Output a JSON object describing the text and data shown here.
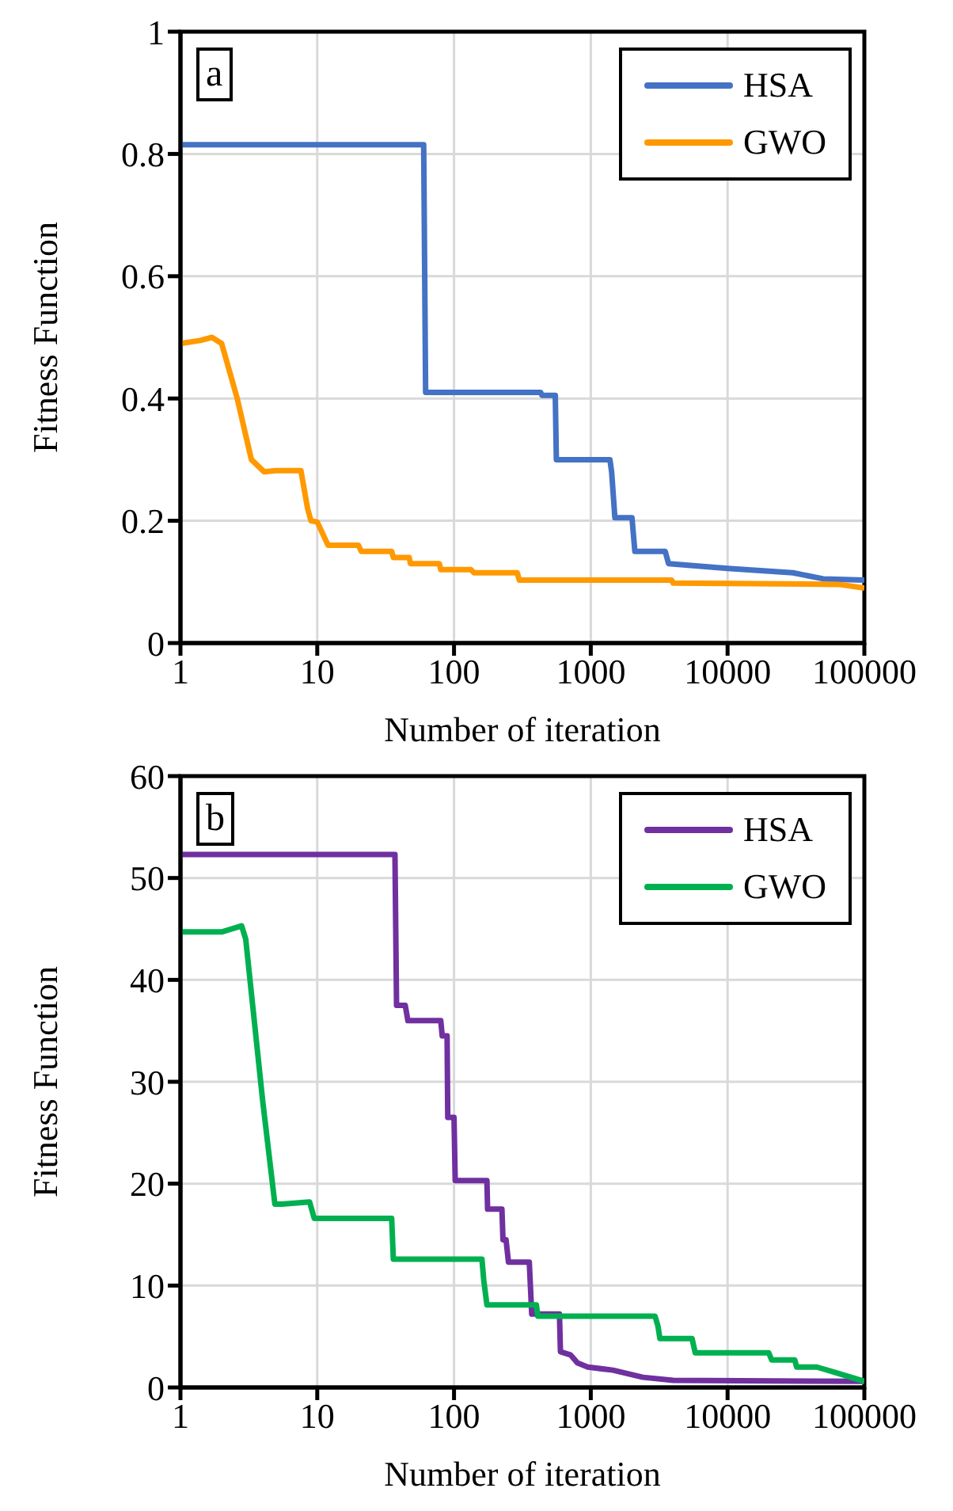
{
  "chart_data": [
    {
      "type": "line",
      "xlabel": "Number of iteration",
      "ylabel": "Fitness Function",
      "annotations": [
        "a"
      ],
      "log": "x",
      "grid": true,
      "legend": "top right",
      "marker": "none",
      "line_style": "solid",
      "xlim": [
        1,
        100000
      ],
      "xticks": [
        1,
        10,
        100,
        1000,
        10000,
        100000
      ],
      "ylim": [
        0,
        1
      ],
      "yticks": [
        0,
        0.2,
        0.4,
        0.6,
        0.8,
        1
      ],
      "series": [
        {
          "name": "HSA",
          "color": "#4472c4",
          "x": [
            1,
            60,
            62,
            430,
            440,
            550,
            560,
            1380,
            1420,
            1500,
            2000,
            2100,
            3500,
            3700,
            10000,
            30000,
            50000,
            100000
          ],
          "values": [
            0.815,
            0.815,
            0.41,
            0.41,
            0.405,
            0.405,
            0.3,
            0.3,
            0.28,
            0.205,
            0.205,
            0.15,
            0.15,
            0.13,
            0.122,
            0.115,
            0.105,
            0.103
          ]
        },
        {
          "name": "GWO",
          "color": "#ff9900",
          "x": [
            1,
            1.4,
            1.7,
            2,
            2.6,
            3.3,
            4.1,
            5,
            7.6,
            8.5,
            9,
            10,
            12,
            20,
            21,
            35,
            36,
            47,
            48,
            78,
            80,
            133,
            140,
            290,
            300,
            3900,
            4000,
            65000,
            100000
          ],
          "values": [
            0.49,
            0.495,
            0.5,
            0.49,
            0.4,
            0.3,
            0.28,
            0.282,
            0.282,
            0.22,
            0.2,
            0.198,
            0.16,
            0.16,
            0.15,
            0.15,
            0.14,
            0.14,
            0.13,
            0.13,
            0.12,
            0.12,
            0.115,
            0.115,
            0.103,
            0.103,
            0.098,
            0.096,
            0.09
          ]
        }
      ]
    },
    {
      "type": "line",
      "xlabel": "Number of iteration",
      "ylabel": "Fitness Function",
      "annotations": [
        "b"
      ],
      "log": "x",
      "grid": true,
      "legend": "top right",
      "marker": "none",
      "line_style": "solid",
      "xlim": [
        1,
        100000
      ],
      "xticks": [
        1,
        10,
        100,
        1000,
        10000,
        100000
      ],
      "ylim": [
        0,
        60
      ],
      "yticks": [
        0,
        10,
        20,
        30,
        40,
        50,
        60
      ],
      "series": [
        {
          "name": "HSA",
          "color": "#7030a0",
          "x": [
            1,
            37,
            38,
            44,
            46,
            80,
            82,
            89,
            90,
            100,
            102,
            174,
            176,
            224,
            228,
            240,
            250,
            260,
            265,
            355,
            370,
            590,
            600,
            710,
            800,
            950,
            1450,
            2400,
            4000,
            100000
          ],
          "values": [
            52.3,
            52.3,
            37.5,
            37.5,
            36,
            36,
            34.5,
            34.5,
            26.5,
            26.5,
            20.3,
            20.3,
            17.5,
            17.5,
            14.5,
            14.5,
            12.3,
            12.3,
            12.3,
            12.3,
            7.2,
            7.2,
            3.5,
            3.2,
            2.4,
            2,
            1.7,
            1,
            0.7,
            0.6
          ]
        },
        {
          "name": "GWO",
          "color": "#00b050",
          "x": [
            1,
            2,
            2.8,
            3,
            4,
            4.9,
            5.5,
            8.8,
            9.5,
            10,
            35,
            36,
            160,
            165,
            174,
            400,
            410,
            2950,
            3100,
            3200,
            5500,
            5800,
            20000,
            21000,
            31000,
            32000,
            45000,
            60000,
            100000
          ],
          "values": [
            44.7,
            44.7,
            45.3,
            44,
            28,
            18,
            18,
            18.2,
            16.6,
            16.6,
            16.6,
            12.6,
            12.6,
            10.5,
            8.1,
            8.1,
            7,
            7,
            6,
            4.8,
            4.8,
            3.4,
            3.4,
            2.7,
            2.7,
            2,
            2,
            1.5,
            0.6
          ]
        }
      ]
    }
  ]
}
